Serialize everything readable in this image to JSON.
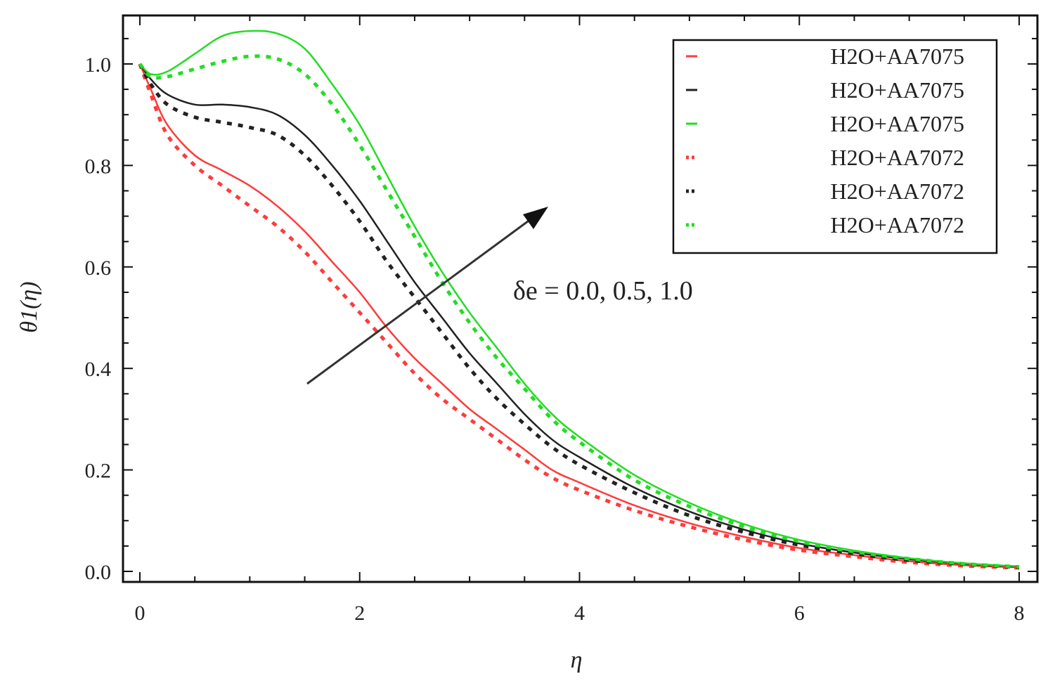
{
  "chart_data": {
    "type": "line",
    "xlabel": "η",
    "ylabel": "θ1(η)",
    "xlim": [
      0,
      8
    ],
    "ylim": [
      0,
      1.08
    ],
    "x_ticks": [
      "0",
      "2",
      "4",
      "6",
      "8"
    ],
    "y_ticks": [
      "0.0",
      "0.2",
      "0.4",
      "0.6",
      "0.8",
      "1.0"
    ],
    "legend_position": "top-right",
    "annotation": "δe = 0.0, 0.5, 1.0",
    "x": [
      0,
      0.1,
      0.25,
      0.5,
      0.75,
      1.0,
      1.25,
      1.5,
      1.75,
      2.0,
      2.25,
      2.5,
      2.75,
      3.0,
      3.25,
      3.5,
      3.75,
      4.0,
      4.5,
      5.0,
      5.5,
      6.0,
      6.5,
      7.0,
      7.5,
      8.0
    ],
    "series": [
      {
        "name": "H2O+AA7075",
        "color": "#ff3b3b",
        "style": "solid",
        "values": [
          1.0,
          0.95,
          0.88,
          0.82,
          0.79,
          0.76,
          0.72,
          0.67,
          0.61,
          0.55,
          0.48,
          0.42,
          0.37,
          0.32,
          0.28,
          0.24,
          0.2,
          0.175,
          0.13,
          0.095,
          0.068,
          0.046,
          0.032,
          0.02,
          0.012,
          0.008
        ]
      },
      {
        "name": "H2O+AA7075",
        "color": "#222222",
        "style": "solid",
        "values": [
          1.0,
          0.97,
          0.94,
          0.92,
          0.92,
          0.915,
          0.9,
          0.86,
          0.8,
          0.73,
          0.65,
          0.57,
          0.5,
          0.43,
          0.37,
          0.31,
          0.26,
          0.225,
          0.165,
          0.118,
          0.082,
          0.055,
          0.037,
          0.024,
          0.015,
          0.009
        ]
      },
      {
        "name": "H2O+AA7075",
        "color": "#22dd22",
        "style": "solid",
        "values": [
          1.0,
          0.98,
          0.985,
          1.02,
          1.055,
          1.065,
          1.06,
          1.03,
          0.96,
          0.88,
          0.78,
          0.68,
          0.59,
          0.51,
          0.44,
          0.37,
          0.31,
          0.265,
          0.19,
          0.135,
          0.093,
          0.062,
          0.041,
          0.026,
          0.016,
          0.01
        ]
      },
      {
        "name": "H2O+AA7072",
        "color": "#ff3b3b",
        "style": "dashed",
        "values": [
          1.0,
          0.94,
          0.86,
          0.8,
          0.76,
          0.72,
          0.68,
          0.63,
          0.57,
          0.51,
          0.45,
          0.39,
          0.34,
          0.3,
          0.26,
          0.22,
          0.185,
          0.16,
          0.12,
          0.088,
          0.062,
          0.042,
          0.029,
          0.018,
          0.011,
          0.007
        ]
      },
      {
        "name": "H2O+AA7072",
        "color": "#222222",
        "style": "dashed",
        "values": [
          1.0,
          0.96,
          0.92,
          0.895,
          0.885,
          0.875,
          0.86,
          0.82,
          0.76,
          0.69,
          0.61,
          0.54,
          0.47,
          0.4,
          0.34,
          0.29,
          0.245,
          0.21,
          0.155,
          0.11,
          0.077,
          0.052,
          0.035,
          0.022,
          0.014,
          0.008
        ]
      },
      {
        "name": "H2O+AA7072",
        "color": "#22dd22",
        "style": "dashed",
        "values": [
          1.0,
          0.975,
          0.975,
          0.99,
          1.005,
          1.015,
          1.01,
          0.98,
          0.92,
          0.84,
          0.75,
          0.66,
          0.57,
          0.49,
          0.42,
          0.36,
          0.3,
          0.255,
          0.18,
          0.128,
          0.088,
          0.059,
          0.039,
          0.025,
          0.015,
          0.009
        ]
      }
    ]
  }
}
